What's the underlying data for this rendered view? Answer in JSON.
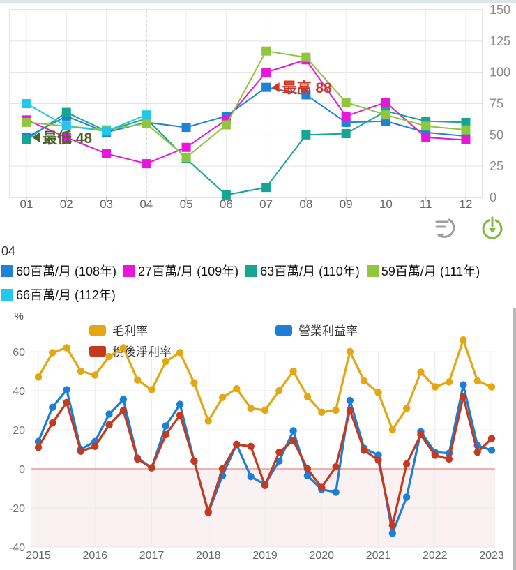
{
  "tooltip_panel": {
    "title": "04"
  },
  "toolbar": {
    "restore_icon": "restore",
    "download_icon": "download",
    "restore_color": "#9e9e9e",
    "download_color": "#7cb93e"
  },
  "chart_data": [
    {
      "name": "monthly-comparison-chart",
      "type": "line",
      "categories": [
        "01",
        "02",
        "03",
        "04",
        "05",
        "06",
        "07",
        "08",
        "09",
        "10",
        "11",
        "12"
      ],
      "ylim": [
        0,
        150
      ],
      "yticks": [
        0,
        25,
        50,
        75,
        100,
        125,
        150
      ],
      "y_axis_side": "right",
      "grid": true,
      "highlight_category": "04",
      "series": [
        {
          "name": "60百萬/月 (108年)",
          "color": "#1e82d6",
          "marker": "square",
          "values": [
            48,
            65,
            52,
            60,
            56,
            65,
            88,
            82,
            60,
            61,
            52,
            49
          ]
        },
        {
          "name": "27百萬/月 (109年)",
          "color": "#e716d8",
          "marker": "square",
          "values": [
            62,
            48,
            35,
            27,
            40,
            62,
            100,
            110,
            65,
            76,
            48,
            46
          ]
        },
        {
          "name": "63百萬/月 (110年)",
          "color": "#16a595",
          "marker": "square",
          "values": [
            46,
            68,
            53,
            63,
            31,
            2,
            8,
            50,
            51,
            69,
            61,
            60
          ]
        },
        {
          "name": "59百萬/月 (111年)",
          "color": "#8fc63e",
          "marker": "square",
          "values": [
            60,
            57,
            54,
            59,
            32,
            58,
            117,
            112,
            76,
            66,
            57,
            54
          ]
        },
        {
          "name": "66百萬/月 (112年)",
          "color": "#25c7e8",
          "marker": "square",
          "values": [
            75,
            57,
            53,
            66
          ]
        }
      ],
      "annotations": [
        {
          "label": "最低 48",
          "category_index": 0,
          "value": 48,
          "color": "#4a6328"
        },
        {
          "label": "最高 88",
          "category_index": 6,
          "value": 88,
          "color": "#cf3626"
        }
      ]
    },
    {
      "name": "margin-ratios-chart",
      "type": "line",
      "x_tick_labels": [
        "2015",
        "2016",
        "2017",
        "2018",
        "2019",
        "2020",
        "2021",
        "2022",
        "2023"
      ],
      "points_per_year": 4,
      "ylabel": "%",
      "ylim": [
        -40,
        60
      ],
      "yticks": [
        -40,
        -20,
        0,
        20,
        40,
        60
      ],
      "y_axis_side": "left",
      "negative_area_tint": "#fcf1f2",
      "zero_line_color": "#e59c9c",
      "legend_position": "top",
      "series": [
        {
          "name": "毛利率",
          "color": "#e2a713",
          "values": [
            47,
            59.5,
            62,
            50,
            48,
            57.5,
            62,
            45.5,
            40.5,
            55,
            59.5,
            44,
            24.5,
            36.5,
            41,
            31,
            30,
            40,
            50,
            37,
            29,
            30,
            60,
            45,
            39,
            20,
            31,
            49.5,
            42,
            44.5,
            66,
            45,
            42
          ]
        },
        {
          "name": "營業利益率",
          "color": "#1b7fd8",
          "values": [
            14,
            31.5,
            40.5,
            10,
            14,
            28,
            35.5,
            5.5,
            0.5,
            22,
            33,
            4,
            -22.5,
            -3.5,
            12.5,
            -4,
            -8,
            4,
            19.5,
            -3.5,
            -10.5,
            -12,
            35,
            10.5,
            7,
            -33,
            -14.5,
            19,
            8.5,
            8,
            43,
            12,
            9.5
          ]
        },
        {
          "name": "稅後淨利率",
          "color": "#c33a20",
          "values": [
            11,
            23.5,
            34,
            9,
            11.5,
            22.5,
            30,
            5,
            0.5,
            17.5,
            27.5,
            4,
            -22,
            0,
            12.5,
            11.5,
            -8.5,
            8.5,
            14.5,
            0,
            -9.5,
            1,
            30,
            9.5,
            4.5,
            -29,
            2.5,
            17.5,
            7,
            5,
            37,
            8.5,
            15.5
          ]
        }
      ]
    }
  ]
}
